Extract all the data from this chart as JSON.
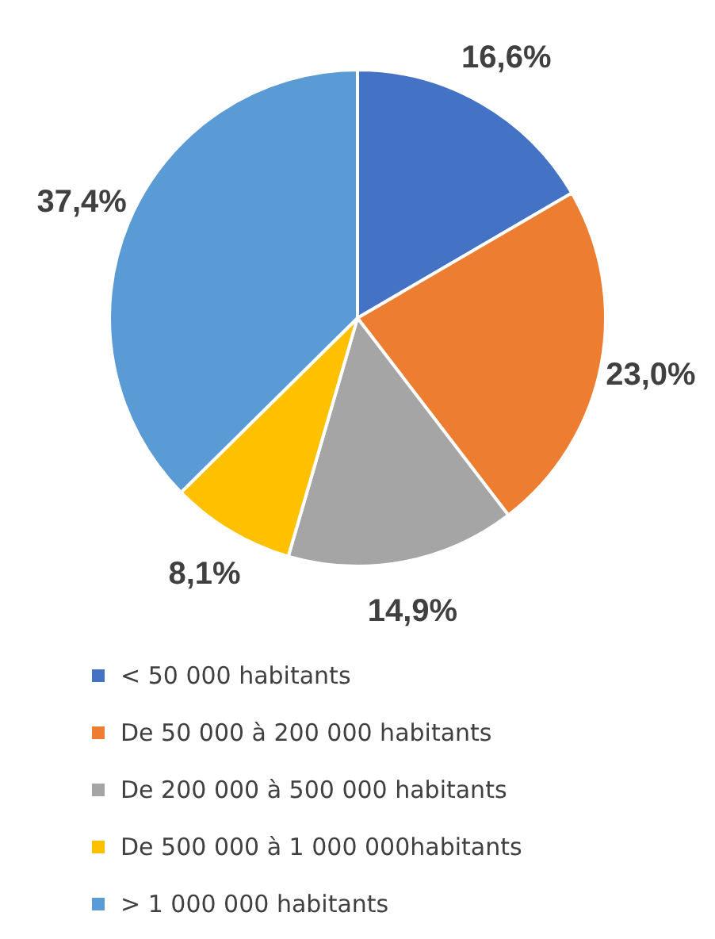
{
  "chart_data": {
    "type": "pie",
    "categories": [
      "< 50 000 habitants",
      "De 50 000 à 200 000 habitants",
      "De 200 000 à 500 000 habitants",
      "De 500 000 à 1 000 000habitants",
      "> 1 000 000 habitants"
    ],
    "values": [
      16.6,
      23.0,
      14.9,
      8.1,
      37.4
    ],
    "colors": [
      "#4472c4",
      "#ed7d31",
      "#a5a5a5",
      "#ffc000",
      "#5b9bd5"
    ],
    "value_labels": [
      "16,6%",
      "23,0%",
      "14,9%",
      "8,1%",
      "37,4%"
    ],
    "legend": "bottom"
  }
}
